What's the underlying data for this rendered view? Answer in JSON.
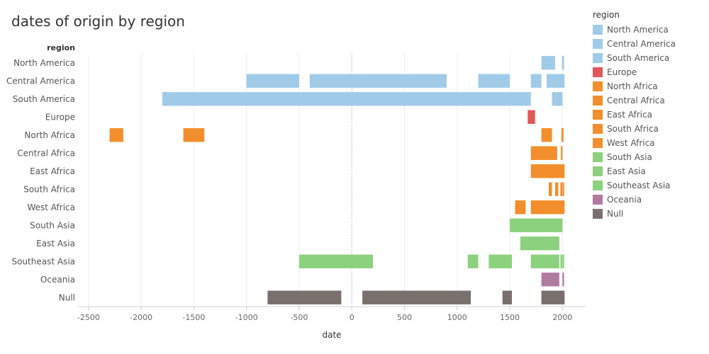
{
  "chart_data": {
    "type": "bar",
    "title": "dates of origin by region",
    "xlabel": "date",
    "ylabel": "region",
    "xlim": [
      -2600,
      2220
    ],
    "xticks": [
      -2500,
      -2000,
      -1500,
      -1000,
      -500,
      0,
      500,
      1000,
      1500,
      2000
    ],
    "grid": true,
    "legend_title": "region",
    "legend_placement": "right",
    "categories": [
      "North America",
      "Central America",
      "South America",
      "Europe",
      "North Africa",
      "Central Africa",
      "East Africa",
      "South Africa",
      "West Africa",
      "South Asia",
      "East Asia",
      "Southeast Asia",
      "Oceania",
      "Null"
    ],
    "colors": {
      "North America": "#a0cbe8",
      "Central America": "#a0cbe8",
      "South America": "#a0cbe8",
      "Europe": "#e15759",
      "North Africa": "#f28e2b",
      "Central Africa": "#f28e2b",
      "East Africa": "#f28e2b",
      "South Africa": "#f28e2b",
      "West Africa": "#f28e2b",
      "South Asia": "#8cd17d",
      "East Asia": "#8cd17d",
      "Southeast Asia": "#8cd17d",
      "Oceania": "#b07aa1",
      "Null": "#79706e"
    },
    "series": [
      {
        "category": "North America",
        "ranges": [
          [
            1800,
            1930
          ],
          [
            1995,
            2015
          ]
        ]
      },
      {
        "category": "Central America",
        "ranges": [
          [
            -1000,
            -500
          ],
          [
            -400,
            900
          ],
          [
            1200,
            1500
          ],
          [
            1700,
            1800
          ],
          [
            1850,
            2020
          ]
        ]
      },
      {
        "category": "South America",
        "ranges": [
          [
            -1800,
            1700
          ],
          [
            1900,
            2000
          ]
        ]
      },
      {
        "category": "Europe",
        "ranges": [
          [
            1670,
            1740
          ]
        ]
      },
      {
        "category": "North Africa",
        "ranges": [
          [
            -2300,
            -2170
          ],
          [
            -1600,
            -1400
          ],
          [
            1800,
            1900
          ],
          [
            1990,
            2010
          ]
        ]
      },
      {
        "category": "Central Africa",
        "ranges": [
          [
            1700,
            1950
          ],
          [
            1985,
            2000
          ]
        ]
      },
      {
        "category": "East Africa",
        "ranges": [
          [
            1700,
            2020
          ]
        ]
      },
      {
        "category": "South Africa",
        "ranges": [
          [
            1870,
            1900
          ],
          [
            1930,
            1960
          ],
          [
            1980,
            2000
          ],
          [
            2003,
            2015
          ]
        ]
      },
      {
        "category": "West Africa",
        "ranges": [
          [
            1550,
            1650
          ],
          [
            1700,
            2020
          ]
        ]
      },
      {
        "category": "South Asia",
        "ranges": [
          [
            1500,
            2000
          ]
        ]
      },
      {
        "category": "East Asia",
        "ranges": [
          [
            1600,
            1970
          ]
        ]
      },
      {
        "category": "Southeast Asia",
        "ranges": [
          [
            -500,
            200
          ],
          [
            1100,
            1200
          ],
          [
            1300,
            1520
          ],
          [
            1700,
            1970
          ],
          [
            1980,
            2000
          ],
          [
            2003,
            2015
          ]
        ]
      },
      {
        "category": "Oceania",
        "ranges": [
          [
            1800,
            1970
          ],
          [
            2000,
            2015
          ]
        ]
      },
      {
        "category": "Null",
        "ranges": [
          [
            -800,
            -100
          ],
          [
            100,
            1130
          ],
          [
            1430,
            1520
          ],
          [
            1800,
            2020
          ]
        ]
      }
    ]
  }
}
